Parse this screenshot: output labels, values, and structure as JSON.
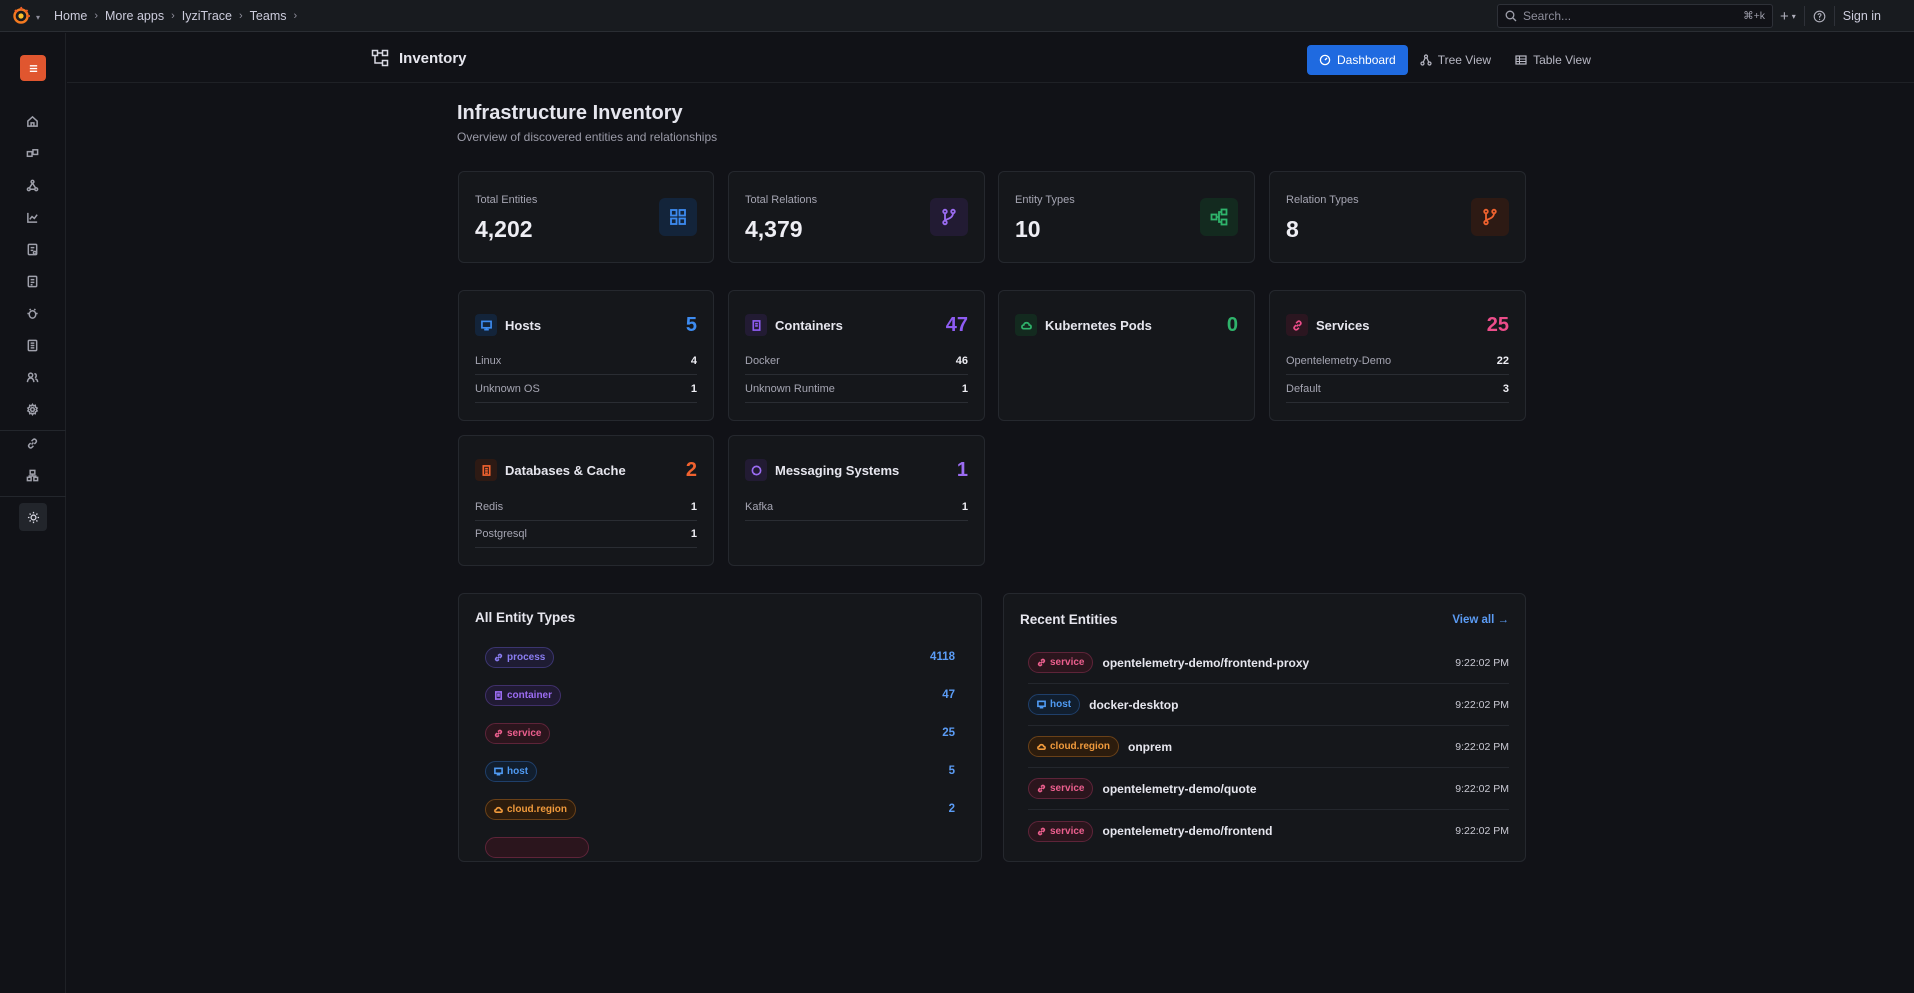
{
  "topbar": {
    "breadcrumb": [
      "Home",
      "More apps",
      "IyziTrace",
      "Teams"
    ],
    "search_placeholder": "Search...",
    "search_shortcut": "⌘+k",
    "sign_in": "Sign in"
  },
  "page": {
    "title": "Inventory",
    "tabs": [
      "Dashboard",
      "Tree View",
      "Table View"
    ],
    "active_tab": "Dashboard"
  },
  "main": {
    "title": "Infrastructure Inventory",
    "subtitle": "Overview of discovered entities and relationships"
  },
  "stats": [
    {
      "label": "Total Entities",
      "value": "4,202",
      "icon": "grid-icon",
      "color": "#3d8bf0"
    },
    {
      "label": "Total Relations",
      "value": "4,379",
      "icon": "branch-icon",
      "color": "#9b6cf2"
    },
    {
      "label": "Entity Types",
      "value": "10",
      "icon": "hierarchy-icon",
      "color": "#2fb36b"
    },
    {
      "label": "Relation Types",
      "value": "8",
      "icon": "branch-icon",
      "color": "#f0622f"
    }
  ],
  "categories": [
    {
      "title": "Hosts",
      "count": "5",
      "color": "#3d8bf0",
      "icon": "monitor-icon",
      "rows": [
        {
          "label": "Linux",
          "value": "4"
        },
        {
          "label": "Unknown OS",
          "value": "1"
        }
      ]
    },
    {
      "title": "Containers",
      "count": "47",
      "color": "#8e5cf2",
      "icon": "container-icon",
      "rows": [
        {
          "label": "Docker",
          "value": "46"
        },
        {
          "label": "Unknown Runtime",
          "value": "1"
        }
      ]
    },
    {
      "title": "Kubernetes Pods",
      "count": "0",
      "color": "#2fb36b",
      "icon": "cloud-icon",
      "rows": []
    },
    {
      "title": "Services",
      "count": "25",
      "color": "#ec4d8a",
      "icon": "link-icon",
      "rows": [
        {
          "label": "Opentelemetry-Demo",
          "value": "22"
        },
        {
          "label": "Default",
          "value": "3"
        }
      ]
    },
    {
      "title": "Databases & Cache",
      "count": "2",
      "color": "#f0622f",
      "icon": "database-icon",
      "rows": [
        {
          "label": "Redis",
          "value": "1"
        },
        {
          "label": "Postgresql",
          "value": "1"
        }
      ]
    },
    {
      "title": "Messaging Systems",
      "count": "1",
      "color": "#9b6cf2",
      "icon": "message-icon",
      "rows": [
        {
          "label": "Kafka",
          "value": "1"
        }
      ]
    }
  ],
  "entity_types": {
    "title": "All Entity Types",
    "items": [
      {
        "name": "process",
        "count": "4118",
        "style": "process"
      },
      {
        "name": "container",
        "count": "47",
        "style": "container"
      },
      {
        "name": "service",
        "count": "25",
        "style": "service"
      },
      {
        "name": "host",
        "count": "5",
        "style": "host"
      },
      {
        "name": "cloud.region",
        "count": "2",
        "style": "region"
      }
    ]
  },
  "recent": {
    "title": "Recent Entities",
    "view_all": "View all →",
    "items": [
      {
        "type": "service",
        "name": "opentelemetry-demo/frontend-proxy",
        "time": "9:22:02 PM"
      },
      {
        "type": "host",
        "name": "docker-desktop",
        "time": "9:22:02 PM"
      },
      {
        "type": "cloud.region",
        "name": "onprem",
        "time": "9:22:02 PM"
      },
      {
        "type": "service",
        "name": "opentelemetry-demo/quote",
        "time": "9:22:02 PM"
      },
      {
        "type": "service",
        "name": "opentelemetry-demo/frontend",
        "time": "9:22:02 PM"
      }
    ]
  }
}
